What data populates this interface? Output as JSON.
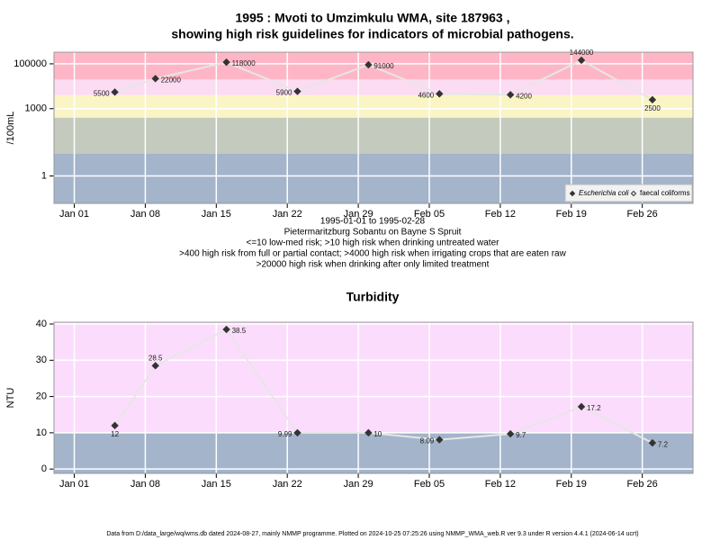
{
  "chart_data": [
    {
      "type": "line",
      "title": [
        "1995 : Mvoti to Umzimkulu WMA, site 187963 ,",
        "showing high risk guidelines for indicators of microbial pathogens."
      ],
      "notes": [
        "1995-01-01 to 1995-02-28",
        "Pietermaritzburg Sobantu on Bayne S Spruit",
        "<=10 low-med risk; >10 high risk when drinking untreated water",
        ">400 high risk from full or partial contact; >4000 high risk when irrigating crops that are eaten raw",
        ">20000 high risk when drinking after only limited treatment"
      ],
      "y_label": "/100mL",
      "log_y": true,
      "x": [
        "1995-01-05",
        "1995-01-09",
        "1995-01-16",
        "1995-01-23",
        "1995-01-30",
        "1995-02-06",
        "1995-02-13",
        "1995-02-20",
        "1995-02-27"
      ],
      "series": [
        {
          "name": "Escherichia coli",
          "color": "#333333",
          "marker": "filled",
          "values": [
            5500,
            22000,
            118000,
            5900,
            91000,
            4600,
            4200,
            144000,
            2500
          ]
        },
        {
          "name": "faecal coliforms",
          "color": "#333333",
          "marker": "open",
          "values": [
            null,
            null,
            null,
            null,
            null,
            null,
            null,
            null,
            null
          ]
        }
      ],
      "xlim": [
        "1994-12-30",
        "1995-03-03"
      ],
      "xticks": [
        {
          "value": "1995-01-01",
          "label": "Jan 01"
        },
        {
          "value": "1995-01-08",
          "label": "Jan 08"
        },
        {
          "value": "1995-01-15",
          "label": "Jan 15"
        },
        {
          "value": "1995-01-22",
          "label": "Jan 22"
        },
        {
          "value": "1995-01-29",
          "label": "Jan 29"
        },
        {
          "value": "1995-02-05",
          "label": "Feb 05"
        },
        {
          "value": "1995-02-12",
          "label": "Feb 12"
        },
        {
          "value": "1995-02-19",
          "label": "Feb 19"
        },
        {
          "value": "1995-02-26",
          "label": "Feb 26"
        }
      ],
      "ylim": [
        0.06,
        330000
      ],
      "yticks": [
        1,
        1000,
        100000
      ],
      "band_edges": [
        10,
        400,
        4000,
        20000
      ],
      "band_colors": [
        "#a3b4cb",
        "#c4cabd",
        "#fbf5c6",
        "#fcdcf2",
        "#feb6c6"
      ],
      "grid": true,
      "legend": "bottom-right"
    },
    {
      "type": "line",
      "title": [
        "Turbidity"
      ],
      "y_label": "NTU",
      "log_y": false,
      "x": [
        "1995-01-05",
        "1995-01-09",
        "1995-01-16",
        "1995-01-23",
        "1995-01-30",
        "1995-02-06",
        "1995-02-13",
        "1995-02-20",
        "1995-02-27"
      ],
      "series": [
        {
          "name": "Turbidity",
          "color": "#333333",
          "marker": "filled",
          "values": [
            12,
            28.5,
            38.5,
            9.99,
            10,
            8.09,
            9.7,
            17.2,
            7.2
          ]
        }
      ],
      "xlim": [
        "1994-12-30",
        "1995-03-03"
      ],
      "xticks": [
        {
          "value": "1995-01-01",
          "label": "Jan 01"
        },
        {
          "value": "1995-01-08",
          "label": "Jan 08"
        },
        {
          "value": "1995-01-15",
          "label": "Jan 15"
        },
        {
          "value": "1995-01-22",
          "label": "Jan 22"
        },
        {
          "value": "1995-01-29",
          "label": "Jan 29"
        },
        {
          "value": "1995-02-05",
          "label": "Feb 05"
        },
        {
          "value": "1995-02-12",
          "label": "Feb 12"
        },
        {
          "value": "1995-02-19",
          "label": "Feb 19"
        },
        {
          "value": "1995-02-26",
          "label": "Feb 26"
        }
      ],
      "ylim": [
        -1.2,
        40.5
      ],
      "yticks": [
        0,
        10,
        20,
        30,
        40
      ],
      "band_edges": [
        10
      ],
      "band_colors": [
        "#a3b4cb",
        "#fcdcfc"
      ],
      "grid": true
    }
  ],
  "footer": "Data from D:/data_large/wq/wms.db dated 2024-08-27, mainly NMMP programme. Plotted on 2024-10-25 07:25:26 using NMMP_WMA_web.R ver 9.3 under R version 4.4.1 (2024-06-14 ucrt)"
}
